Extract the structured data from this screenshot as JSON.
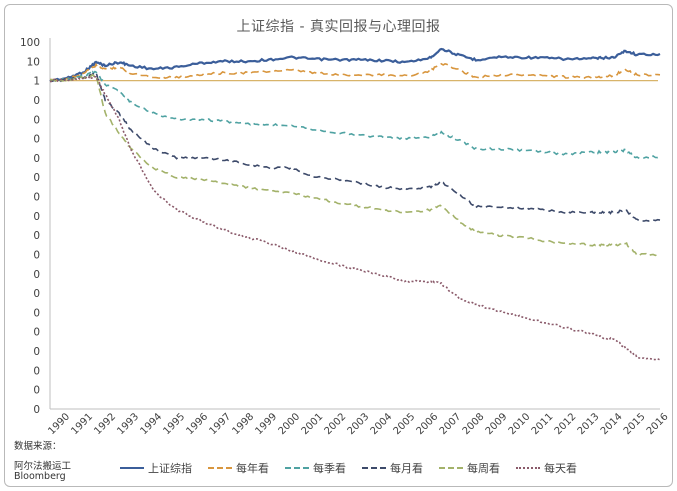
{
  "chart_data": {
    "type": "line",
    "title": "上证综指 - 真实回报与心理回报",
    "xlabel": "",
    "ylabel": "",
    "log_scale": true,
    "ylim": [
      1e-10,
      100
    ],
    "y_tick_labels": [
      "100",
      "10",
      "1",
      "0",
      "0",
      "0",
      "0",
      "0",
      "0",
      "0",
      "0",
      "0",
      "0",
      "0",
      "0",
      "0",
      "0",
      "0",
      "0",
      "0"
    ],
    "x_tick_labels": [
      "1990",
      "1991",
      "1992",
      "1993",
      "1994",
      "1995",
      "1996",
      "1997",
      "1998",
      "1999",
      "2000",
      "2001",
      "2002",
      "2003",
      "2004",
      "2005",
      "2006",
      "2007",
      "2008",
      "2009",
      "2010",
      "2011",
      "2012",
      "2013",
      "2014",
      "2015",
      "2016"
    ],
    "legend_position": "bottom",
    "series": [
      {
        "name": "上证综指",
        "color": "#3b5e9a",
        "dash": "solid",
        "x": [
          1990.0,
          1990.8,
          1991.5,
          1992.0,
          1992.4,
          1993.0,
          1993.5,
          1994.5,
          1995.5,
          1996.5,
          1997.5,
          1998.5,
          1999.5,
          2000.5,
          2001.5,
          2002.5,
          2003.5,
          2004.5,
          2005.5,
          2006.5,
          2007.0,
          2007.8,
          2008.5,
          2009.5,
          2010.5,
          2011.5,
          2012.5,
          2013.5,
          2014.0,
          2014.5,
          2015.0,
          2015.5,
          2016.5
        ],
        "y": [
          1,
          1.4,
          3,
          9,
          6,
          9,
          6,
          4,
          5,
          8,
          10,
          10,
          12,
          16,
          13,
          12,
          12,
          11,
          9,
          15,
          45,
          20,
          12,
          17,
          16,
          15,
          13,
          14,
          15,
          16,
          35,
          22,
          24
        ]
      },
      {
        "name": "每年看",
        "color": "#d8963e",
        "dash": "8,4",
        "x": [
          1990.0,
          1990.8,
          1991.5,
          1992.0,
          1992.4,
          1993.0,
          1993.5,
          1994.5,
          1995.5,
          1996.5,
          1997.5,
          1998.5,
          1999.5,
          2000.5,
          2001.5,
          2002.5,
          2003.5,
          2004.5,
          2005.5,
          2006.5,
          2007.0,
          2007.8,
          2008.5,
          2009.5,
          2010.5,
          2011.5,
          2012.5,
          2013.5,
          2014.0,
          2014.5,
          2015.0,
          2015.5,
          2016.5
        ],
        "y": [
          1,
          1.3,
          2.5,
          6,
          4,
          5,
          2.5,
          1.5,
          1.5,
          2,
          2.5,
          2.5,
          3,
          3.5,
          2.5,
          2,
          2,
          2,
          1.8,
          3,
          8,
          3.5,
          1.5,
          2,
          2,
          1.8,
          1.5,
          1.5,
          1.6,
          1.8,
          4,
          2,
          2
        ]
      },
      {
        "name": "每季看",
        "color": "#4fa2a2",
        "dash": "6,4",
        "x": [
          1990.0,
          1990.8,
          1991.5,
          1992.0,
          1992.4,
          1993.0,
          1993.5,
          1994.5,
          1995.5,
          1996.5,
          1997.5,
          1998.5,
          1999.5,
          2000.5,
          2001.5,
          2002.5,
          2003.5,
          2004.5,
          2005.5,
          2006.5,
          2007.0,
          2007.8,
          2008.5,
          2009.5,
          2010.5,
          2011.5,
          2012.5,
          2013.5,
          2014.0,
          2014.5,
          2015.0,
          2015.5,
          2016.5
        ],
        "y": [
          1,
          1.2,
          1.8,
          3,
          0.6,
          0.3,
          0.08,
          0.02,
          0.01,
          0.01,
          0.008,
          0.006,
          0.005,
          0.005,
          0.003,
          0.002,
          0.0015,
          0.0012,
          0.001,
          0.0012,
          0.002,
          0.0008,
          0.0003,
          0.0003,
          0.00025,
          0.0002,
          0.00015,
          0.0002,
          0.0002,
          0.0002,
          0.00025,
          0.0001,
          0.00012
        ]
      },
      {
        "name": "每月看",
        "color": "#3d4a6a",
        "dash": "7,4",
        "x": [
          1990.0,
          1990.8,
          1991.5,
          1992.0,
          1992.4,
          1993.0,
          1993.5,
          1994.5,
          1995.5,
          1996.5,
          1997.5,
          1998.5,
          1999.5,
          2000.5,
          2001.5,
          2002.5,
          2003.5,
          2004.5,
          2005.5,
          2006.5,
          2007.0,
          2007.8,
          2008.5,
          2009.5,
          2010.5,
          2011.5,
          2012.5,
          2013.5,
          2014.0,
          2014.5,
          2015.0,
          2015.5,
          2016.5
        ],
        "y": [
          1,
          1.1,
          1.6,
          2.5,
          0.1,
          0.02,
          0.003,
          0.0003,
          0.0001,
          0.0001,
          8e-05,
          5e-05,
          3e-05,
          3e-05,
          1e-05,
          8e-06,
          5e-06,
          3e-06,
          2.5e-06,
          3e-06,
          6e-06,
          1.2e-06,
          3e-07,
          3e-07,
          2.5e-07,
          2e-07,
          1.5e-07,
          1.5e-07,
          1.5e-07,
          1.5e-07,
          2e-07,
          6e-08,
          6e-08
        ]
      },
      {
        "name": "每周看",
        "color": "#a3b26a",
        "dash": "7,4",
        "x": [
          1990.0,
          1990.8,
          1991.5,
          1992.0,
          1992.4,
          1993.0,
          1993.5,
          1994.5,
          1995.5,
          1996.5,
          1997.5,
          1998.5,
          1999.5,
          2000.5,
          2001.5,
          2002.5,
          2003.5,
          2004.5,
          2005.5,
          2006.5,
          2007.0,
          2007.8,
          2008.5,
          2009.5,
          2010.5,
          2011.5,
          2012.5,
          2013.5,
          2014.0,
          2014.5,
          2015.0,
          2015.5,
          2016.5
        ],
        "y": [
          1,
          1.1,
          1.5,
          2,
          0.02,
          0.002,
          0.0003,
          3e-05,
          1e-05,
          8e-06,
          5e-06,
          3e-06,
          2e-06,
          1.5e-06,
          8e-07,
          5e-07,
          3e-07,
          2e-07,
          1.5e-07,
          2e-07,
          3.5e-07,
          5e-08,
          1.5e-08,
          1e-08,
          8e-09,
          5e-09,
          4e-09,
          3e-09,
          3e-09,
          3e-09,
          4e-09,
          1e-09,
          9e-10
        ]
      },
      {
        "name": "每天看",
        "color": "#8a5a6a",
        "dash": "2,2",
        "x": [
          1990.0,
          1990.8,
          1991.5,
          1992.0,
          1992.4,
          1993.0,
          1993.5,
          1994.5,
          1995.5,
          1996.5,
          1997.5,
          1998.5,
          1999.5,
          2000.5,
          2001.5,
          2002.5,
          2003.5,
          2004.5,
          2005.5,
          2006.5,
          2007.0,
          2007.8,
          2008.5,
          2009.5,
          2010.5,
          2011.5,
          2012.5,
          2013.5,
          2014.0,
          2014.5,
          2015.0,
          2015.5,
          2016.5
        ],
        "y": [
          1,
          1.1,
          1.5,
          1.5,
          0.2,
          0.01,
          0.0003,
          2e-06,
          2e-07,
          6e-08,
          2e-08,
          8e-09,
          4e-09,
          1.5e-09,
          6e-10,
          3e-10,
          1.5e-10,
          8e-11,
          4e-11,
          4e-11,
          3e-11,
          5e-12,
          2.5e-12,
          1.2e-12,
          6e-13,
          3e-13,
          1.5e-13,
          8e-14,
          5e-14,
          4e-14,
          1.5e-14,
          5e-15,
          3.5e-15
        ]
      }
    ]
  },
  "source_lines": [
    "数据来源：",
    "阿尔法搬运工",
    "Bloomberg"
  ],
  "reference_line_color": "#d8b46a"
}
